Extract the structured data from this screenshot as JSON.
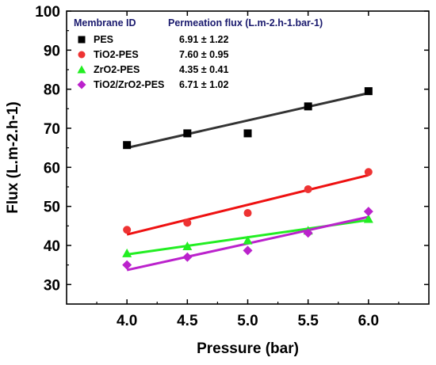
{
  "chart_data": {
    "type": "scatter",
    "title": "",
    "xlabel": "Pressure (bar)",
    "ylabel": "Flux (L.m-2.h-1)",
    "xlim": [
      3.5,
      6.5
    ],
    "ylim": [
      25,
      100
    ],
    "xticks": [
      "4.0",
      "4.5",
      "5.0",
      "5.5",
      "6.0"
    ],
    "yticks": [
      "30",
      "40",
      "50",
      "60",
      "70",
      "80",
      "90",
      "100"
    ],
    "legend_position": "top-left",
    "legend_header": {
      "name": "Membrane ID",
      "value": "Permeation flux (L.m-2.h-1.bar-1)"
    },
    "series": [
      {
        "name": "PES",
        "marker": "square",
        "color": "#000000",
        "line_color": "#333333",
        "x": [
          4.0,
          4.5,
          5.0,
          5.5,
          6.0
        ],
        "y": [
          65.7,
          68.7,
          68.7,
          75.6,
          79.5
        ],
        "fit": [
          [
            4.0,
            65.0
          ],
          [
            6.0,
            79.0
          ]
        ],
        "flux": "6.91 ± 1.22"
      },
      {
        "name": "TiO2-PES",
        "marker": "circle",
        "color": "#ee3333",
        "line_color": "#ee1111",
        "x": [
          4.0,
          4.5,
          5.0,
          5.5,
          6.0
        ],
        "y": [
          44.0,
          45.8,
          48.3,
          54.4,
          58.8
        ],
        "fit": [
          [
            4.0,
            42.8
          ],
          [
            6.0,
            58.0
          ]
        ],
        "flux": "7.60 ± 0.95"
      },
      {
        "name": "ZrO2-PES",
        "marker": "triangle",
        "color": "#22ee22",
        "line_color": "#22ee22",
        "x": [
          4.0,
          4.5,
          5.0,
          5.5,
          6.0
        ],
        "y": [
          38.0,
          39.8,
          41.3,
          43.8,
          46.8
        ],
        "fit": [
          [
            4.0,
            37.7
          ],
          [
            6.0,
            46.5
          ]
        ],
        "flux": "4.35 ± 0.41"
      },
      {
        "name": "TiO2/ZrO2-PES",
        "marker": "diamond",
        "color": "#bb22cc",
        "line_color": "#bb22cc",
        "x": [
          4.0,
          4.5,
          5.0,
          5.5,
          6.0
        ],
        "y": [
          35.0,
          37.0,
          38.7,
          43.2,
          48.7
        ],
        "fit": [
          [
            4.0,
            33.7
          ],
          [
            6.0,
            47.3
          ]
        ],
        "flux": "6.71 ± 1.02"
      }
    ]
  }
}
